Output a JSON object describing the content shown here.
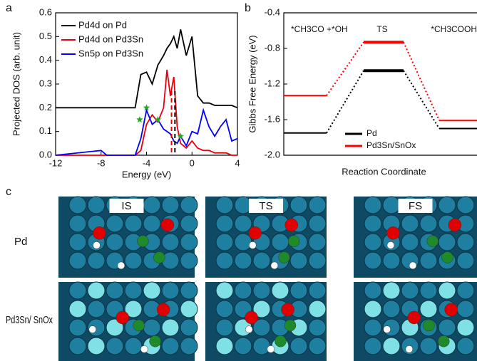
{
  "panel_labels": [
    "a",
    "b",
    "c"
  ],
  "chart_data": [
    {
      "type": "line",
      "xlabel": "Energy (eV)",
      "ylabel": "Projected DOS (arb. unit)",
      "xlim": [
        -12,
        4
      ],
      "xticks": [
        -12,
        -8,
        -4,
        0,
        4
      ],
      "ylim": [
        0,
        0.6
      ],
      "yticks": [
        {
          "value": 0,
          "label": "0.0"
        },
        0.1,
        0.2,
        0.3,
        0.4,
        0.5,
        0.6
      ],
      "x": [
        -12,
        -8,
        -7.5,
        -5,
        -4.5,
        -4,
        -3.5,
        -3,
        -2.5,
        -2.2,
        -1.9,
        -1.6,
        -1.3,
        -1,
        -0.5,
        0,
        0.5,
        1,
        1.5,
        2,
        2.5,
        3,
        3.5,
        4
      ],
      "series": [
        {
          "name": "Pd4d on Pd",
          "color": "#000000",
          "values": [
            0.2,
            0.2,
            0.2,
            0.2,
            0.34,
            0.35,
            0.3,
            0.38,
            0.42,
            0.45,
            0.47,
            0.5,
            0.45,
            0.53,
            0.42,
            0.5,
            0.25,
            0.22,
            0.22,
            0.21,
            0.21,
            0.21,
            0.21,
            0.2
          ]
        },
        {
          "name": "Pd4d on Pd3Sn",
          "color": "#e8000b",
          "values": [
            0,
            0,
            0,
            0,
            0.02,
            0.13,
            0.17,
            0.14,
            0.2,
            0.36,
            0.25,
            0.33,
            0.12,
            0.05,
            0.03,
            0.06,
            0.03,
            0.02,
            0.02,
            0.01,
            0.01,
            0.01,
            0,
            0
          ]
        },
        {
          "name": "Sn5p on Pd3Sn",
          "color": "#0000ff",
          "values": [
            0,
            0.02,
            0,
            0,
            0.07,
            0.19,
            0.13,
            0.15,
            0.11,
            0.1,
            0.09,
            0.06,
            0.05,
            0.08,
            0.04,
            0.1,
            0.09,
            0.19,
            0.12,
            0.08,
            0.12,
            0.15,
            0.06,
            0.07
          ]
        }
      ],
      "vlines": [
        {
          "x": -1.8,
          "color": "#e8000b"
        },
        {
          "x": -1.5,
          "color": "#000000"
        }
      ],
      "markers": [
        {
          "x": -4.6,
          "y": 0.15
        },
        {
          "x": -4,
          "y": 0.2
        },
        {
          "x": -3,
          "y": 0.15
        },
        {
          "x": -1,
          "y": 0.08
        }
      ],
      "marker_color": "#22aa22"
    },
    {
      "type": "energy",
      "xlabel": "Reaction Coordinate",
      "ylabel": "Gibbs Free Energy (eV)",
      "ylim": [
        -2,
        -0.4
      ],
      "yticks": [
        {
          "value": -2,
          "label": "-2.0"
        },
        -1.6,
        -1.2,
        -0.8,
        -0.4
      ],
      "categories": [
        "*CH3CO +*OH",
        "TS",
        "*CH3COOH"
      ],
      "series": [
        {
          "name": "Pd",
          "color": "#000000",
          "values": [
            -1.75,
            -1.05,
            -1.7
          ]
        },
        {
          "name": "Pd3Sn/SnOx",
          "color": "#ff0000",
          "values": [
            -1.33,
            -0.73,
            -1.61
          ]
        }
      ],
      "legend": "lower right"
    }
  ],
  "images": {
    "columns": [
      "IS",
      "TS",
      "FS"
    ],
    "rows": [
      "Pd",
      "Pd3Sn/ SnOx"
    ]
  }
}
